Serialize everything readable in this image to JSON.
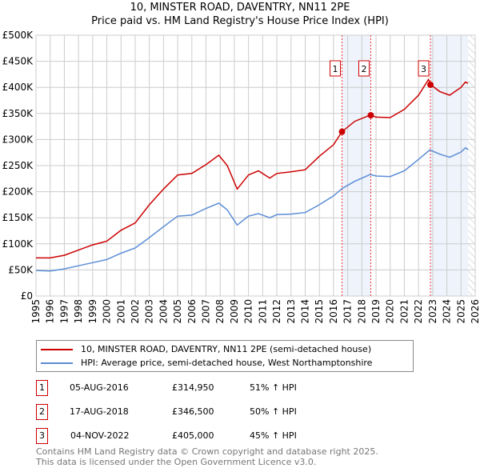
{
  "title": "10, MINSTER ROAD, DAVENTRY, NN11 2PE",
  "subtitle": "Price paid vs. HM Land Registry's House Price Index (HPI)",
  "colors": {
    "property": "#cc0000",
    "hpi": "#5b8dd6",
    "shade": "#eef3fc",
    "grid": "#cccccc"
  },
  "chart_data": {
    "type": "line",
    "xlim": [
      1995,
      2026
    ],
    "ylim": [
      0,
      500000
    ],
    "x_ticks": [
      "1995",
      "1996",
      "1997",
      "1998",
      "1999",
      "2000",
      "2001",
      "2002",
      "2003",
      "2004",
      "2005",
      "2006",
      "2007",
      "2008",
      "2009",
      "2010",
      "2011",
      "2012",
      "2013",
      "2014",
      "2015",
      "2016",
      "2017",
      "2018",
      "2019",
      "2020",
      "2021",
      "2022",
      "2023",
      "2024",
      "2025",
      "2026"
    ],
    "y_ticks": [
      {
        "v": 0,
        "label": "£0"
      },
      {
        "v": 50000,
        "label": "£50K"
      },
      {
        "v": 100000,
        "label": "£100K"
      },
      {
        "v": 150000,
        "label": "£150K"
      },
      {
        "v": 200000,
        "label": "£200K"
      },
      {
        "v": 250000,
        "label": "£250K"
      },
      {
        "v": 300000,
        "label": "£300K"
      },
      {
        "v": 350000,
        "label": "£350K"
      },
      {
        "v": 400000,
        "label": "£400K"
      },
      {
        "v": 450000,
        "label": "£450K"
      },
      {
        "v": 500000,
        "label": "£500K"
      }
    ],
    "grid": true,
    "shaded_ranges": [
      [
        2016.6,
        2018.63
      ],
      [
        2022.84,
        2025.5
      ]
    ],
    "hatched_from": 2025.5,
    "series": [
      {
        "name": "10, MINSTER ROAD, DAVENTRY, NN11 2PE (semi-detached house)",
        "color": "#cc0000",
        "x": [
          1995,
          1996,
          1997,
          1998,
          1999,
          2000,
          2001,
          2002,
          2003,
          2004,
          2005,
          2006,
          2007,
          2007.9,
          2008.5,
          2009.2,
          2010,
          2010.7,
          2011.5,
          2012,
          2013,
          2014,
          2015,
          2016,
          2016.6,
          2017.5,
          2018.6,
          2019,
          2020,
          2021,
          2022,
          2022.7,
          2022.85,
          2023.5,
          2024.2,
          2025,
          2025.3,
          2025.5
        ],
        "y": [
          73000,
          73000,
          78000,
          88000,
          98000,
          105000,
          126000,
          140000,
          175000,
          205000,
          232000,
          235000,
          252000,
          270000,
          250000,
          205000,
          232000,
          240000,
          226000,
          235000,
          238000,
          242000,
          268000,
          290000,
          315000,
          335000,
          347000,
          343000,
          342000,
          358000,
          385000,
          415000,
          405000,
          392000,
          385000,
          400000,
          410000,
          408000
        ]
      },
      {
        "name": "HPI: Average price, semi-detached house, West Northamptonshire",
        "color": "#5b8dd6",
        "x": [
          1995,
          1996,
          1997,
          1998,
          1999,
          2000,
          2001,
          2002,
          2003,
          2004,
          2005,
          2006,
          2007,
          2007.9,
          2008.5,
          2009.2,
          2010,
          2010.7,
          2011.5,
          2012,
          2013,
          2014,
          2015,
          2016,
          2016.6,
          2017.5,
          2018.6,
          2019,
          2020,
          2021,
          2022,
          2022.8,
          2023.5,
          2024.2,
          2025,
          2025.3,
          2025.5
        ],
        "y": [
          49000,
          48000,
          52000,
          58000,
          64000,
          70000,
          82000,
          92000,
          112000,
          133000,
          153000,
          155000,
          168000,
          178000,
          165000,
          136000,
          153000,
          158000,
          150000,
          156000,
          157000,
          160000,
          175000,
          192000,
          206000,
          220000,
          233000,
          230000,
          229000,
          240000,
          262000,
          280000,
          272000,
          266000,
          276000,
          284000,
          281000
        ]
      }
    ],
    "sales": [
      {
        "n": "1",
        "x": 2016.6,
        "y": 314950
      },
      {
        "n": "2",
        "x": 2018.63,
        "y": 346500
      },
      {
        "n": "3",
        "x": 2022.84,
        "y": 405000
      }
    ]
  },
  "legend": {
    "property": "10, MINSTER ROAD, DAVENTRY, NN11 2PE (semi-detached house)",
    "hpi": "HPI: Average price, semi-detached house, West Northamptonshire"
  },
  "sales": [
    {
      "n": "1",
      "date": "05-AUG-2016",
      "price": "£314,950",
      "delta": "51% ↑ HPI"
    },
    {
      "n": "2",
      "date": "17-AUG-2018",
      "price": "£346,500",
      "delta": "50% ↑ HPI"
    },
    {
      "n": "3",
      "date": "04-NOV-2022",
      "price": "£405,000",
      "delta": "45% ↑ HPI"
    }
  ],
  "footer": {
    "line1": "Contains HM Land Registry data © Crown copyright and database right 2025.",
    "line2": "This data is licensed under the Open Government Licence v3.0."
  }
}
